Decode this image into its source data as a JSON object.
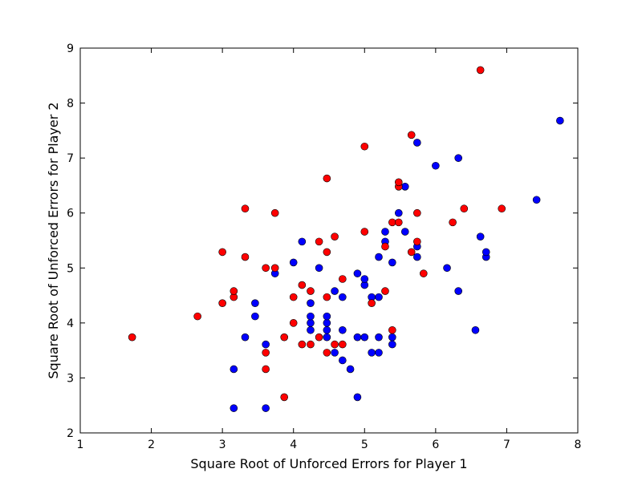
{
  "chart_data": {
    "type": "scatter",
    "title": "",
    "xlabel": "Square Root of Unforced Errors for Player 1",
    "ylabel": "Square Root of Unforced Errors for Player 2",
    "xlim": [
      1,
      8
    ],
    "ylim": [
      2,
      9
    ],
    "xticks": [
      "1",
      "2",
      "3",
      "4",
      "5",
      "6",
      "7",
      "8"
    ],
    "yticks": [
      "2",
      "3",
      "4",
      "5",
      "6",
      "7",
      "8",
      "9"
    ],
    "grid": false,
    "legend": "none",
    "series": [
      {
        "color": "#0000ff",
        "points": [
          [
            3.16,
            2.45
          ],
          [
            3.61,
            2.45
          ],
          [
            4.9,
            2.65
          ],
          [
            3.16,
            3.16
          ],
          [
            4.8,
            3.16
          ],
          [
            4.69,
            3.32
          ],
          [
            4.58,
            3.46
          ],
          [
            5.1,
            3.46
          ],
          [
            5.2,
            3.46
          ],
          [
            3.61,
            3.61
          ],
          [
            5.39,
            3.61
          ],
          [
            3.32,
            3.74
          ],
          [
            4.47,
            3.74
          ],
          [
            4.9,
            3.74
          ],
          [
            5.0,
            3.74
          ],
          [
            5.2,
            3.74
          ],
          [
            5.39,
            3.74
          ],
          [
            4.24,
            3.87
          ],
          [
            4.47,
            3.87
          ],
          [
            4.69,
            3.87
          ],
          [
            6.56,
            3.87
          ],
          [
            4.24,
            4.0
          ],
          [
            4.47,
            4.0
          ],
          [
            3.46,
            4.12
          ],
          [
            4.24,
            4.12
          ],
          [
            4.47,
            4.12
          ],
          [
            3.46,
            4.36
          ],
          [
            4.24,
            4.36
          ],
          [
            4.69,
            4.47
          ],
          [
            5.1,
            4.47
          ],
          [
            5.2,
            4.47
          ],
          [
            4.58,
            4.58
          ],
          [
            6.32,
            4.58
          ],
          [
            5.0,
            4.69
          ],
          [
            5.0,
            4.8
          ],
          [
            3.74,
            4.9
          ],
          [
            4.9,
            4.9
          ],
          [
            4.36,
            5.0
          ],
          [
            6.16,
            5.0
          ],
          [
            4.0,
            5.1
          ],
          [
            5.39,
            5.1
          ],
          [
            5.2,
            5.2
          ],
          [
            5.74,
            5.2
          ],
          [
            6.71,
            5.2
          ],
          [
            6.71,
            5.29
          ],
          [
            5.74,
            5.39
          ],
          [
            5.29,
            5.48
          ],
          [
            4.12,
            5.48
          ],
          [
            6.63,
            5.57
          ],
          [
            5.29,
            5.66
          ],
          [
            5.57,
            5.66
          ],
          [
            5.48,
            6.0
          ],
          [
            7.42,
            6.24
          ],
          [
            5.57,
            6.48
          ],
          [
            6.0,
            6.86
          ],
          [
            6.32,
            7.0
          ],
          [
            5.74,
            7.28
          ],
          [
            7.75,
            7.68
          ]
        ]
      },
      {
        "color": "#ff0000",
        "points": [
          [
            1.73,
            3.74
          ],
          [
            2.65,
            4.12
          ],
          [
            3.0,
            4.36
          ],
          [
            3.0,
            5.29
          ],
          [
            3.16,
            4.47
          ],
          [
            3.16,
            4.58
          ],
          [
            3.32,
            5.2
          ],
          [
            3.32,
            6.08
          ],
          [
            3.61,
            3.16
          ],
          [
            3.61,
            3.46
          ],
          [
            3.61,
            5.0
          ],
          [
            3.74,
            5.0
          ],
          [
            3.74,
            6.0
          ],
          [
            3.87,
            2.65
          ],
          [
            3.87,
            3.74
          ],
          [
            4.0,
            4.0
          ],
          [
            4.0,
            4.47
          ],
          [
            4.12,
            3.61
          ],
          [
            4.12,
            4.69
          ],
          [
            4.24,
            3.61
          ],
          [
            4.24,
            4.58
          ],
          [
            4.36,
            3.74
          ],
          [
            4.36,
            5.48
          ],
          [
            4.47,
            3.46
          ],
          [
            4.47,
            4.47
          ],
          [
            4.47,
            5.29
          ],
          [
            4.47,
            6.63
          ],
          [
            4.58,
            3.61
          ],
          [
            4.58,
            5.57
          ],
          [
            4.69,
            3.61
          ],
          [
            4.69,
            4.8
          ],
          [
            5.0,
            5.66
          ],
          [
            5.0,
            7.21
          ],
          [
            5.1,
            4.36
          ],
          [
            5.29,
            4.58
          ],
          [
            5.29,
            5.39
          ],
          [
            5.39,
            3.87
          ],
          [
            5.39,
            5.83
          ],
          [
            5.48,
            5.83
          ],
          [
            5.48,
            6.48
          ],
          [
            5.48,
            6.56
          ],
          [
            5.66,
            5.29
          ],
          [
            5.66,
            7.42
          ],
          [
            5.74,
            5.48
          ],
          [
            5.74,
            6.0
          ],
          [
            5.83,
            4.9
          ],
          [
            6.24,
            5.83
          ],
          [
            6.4,
            6.08
          ],
          [
            6.63,
            8.6
          ],
          [
            6.93,
            6.08
          ]
        ]
      }
    ]
  }
}
